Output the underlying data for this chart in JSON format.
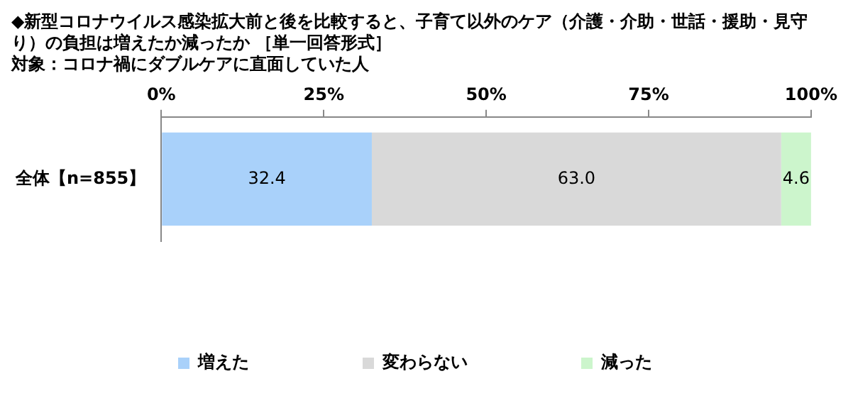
{
  "chart_data": {
    "type": "bar",
    "orientation": "horizontal",
    "stacked": true,
    "title": "◆新型コロナウイルス感染拡大前と後を比較すると、子育て以外のケア（介護・介助・世話・援助・見守り）の負担は増えたか減ったか ［単一回答形式］",
    "subtitle": "対象：コロナ禍にダブルケアに直面していた人",
    "categories": [
      "全体【n=855】"
    ],
    "series": [
      {
        "name": "増えた",
        "color": "#a9d1fa",
        "values": [
          32.4
        ],
        "value_labels": [
          "32.4"
        ]
      },
      {
        "name": "変わらない",
        "color": "#d9d9d9",
        "values": [
          63.0
        ],
        "value_labels": [
          "63.0"
        ]
      },
      {
        "name": "減った",
        "color": "#ccf5cc",
        "values": [
          4.6
        ],
        "value_labels": [
          "4.6"
        ]
      }
    ],
    "xlim": [
      0,
      100
    ],
    "xticks": [
      {
        "value": 0,
        "label": "0%"
      },
      {
        "value": 25,
        "label": "25%"
      },
      {
        "value": 50,
        "label": "50%"
      },
      {
        "value": 75,
        "label": "75%"
      },
      {
        "value": 100,
        "label": "100%"
      }
    ],
    "legend": "bottom",
    "grid": false
  }
}
